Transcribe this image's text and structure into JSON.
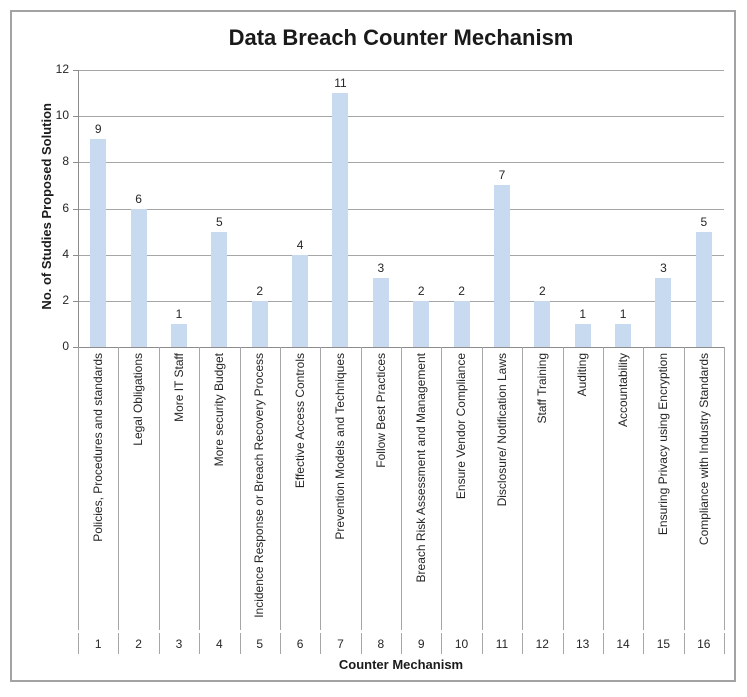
{
  "chart_data": {
    "type": "bar",
    "title": "Data Breach Counter Mechanism",
    "xlabel": "Counter Mechanism",
    "ylabel": "No. of Studies Proposed Solution",
    "categories": [
      "Policies, Procedures and standards",
      "Legal Obligations",
      "More IT Staff",
      "More security Budget",
      "Incidence Response or Breach Recovery Process",
      "Effective Access Controls",
      "Prevention Models and Techniques",
      "Follow Best Practices",
      "Breach Risk Assessment and Management",
      "Ensure Vendor Compliance",
      "Disclosure/ Notification Laws",
      "Staff Training",
      "Auditing",
      "Accountability",
      "Ensuring Privacy using Encryption",
      "Compliance with Industry Standards"
    ],
    "category_numbers": [
      "1",
      "2",
      "3",
      "4",
      "5",
      "6",
      "7",
      "8",
      "9",
      "10",
      "11",
      "12",
      "13",
      "14",
      "15",
      "16"
    ],
    "values": [
      9,
      6,
      1,
      5,
      2,
      4,
      11,
      3,
      2,
      2,
      7,
      2,
      1,
      1,
      3,
      5
    ],
    "data_labels": true,
    "ylim": [
      0,
      12
    ],
    "yticks": [
      0,
      2,
      4,
      6,
      8,
      10,
      12
    ],
    "grid": true,
    "legend": "none",
    "colors": {
      "bar_fill": "#c8daf0",
      "gridline": "#a6a6a6",
      "axis": "#8c8c8c",
      "frame_border": "#a3a3a3",
      "text": "#262626"
    }
  }
}
